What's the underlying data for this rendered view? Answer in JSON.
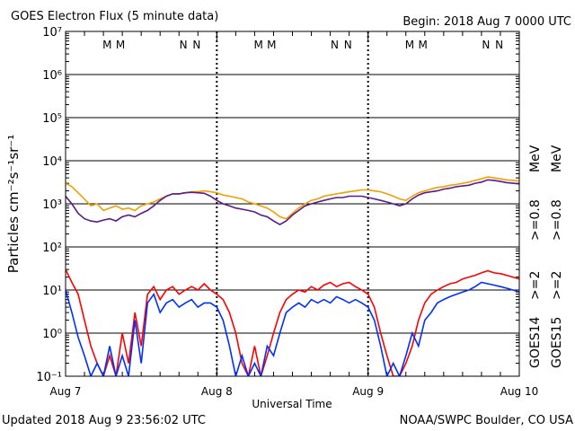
{
  "chart_data": {
    "type": "line",
    "title": "GOES Electron Flux (5 minute data)",
    "subtitle": "Begin: 2018 Aug 7 0000 UTC",
    "xlabel": "Universal Time",
    "ylabel": "Particles cm⁻²s⁻¹sr⁻¹",
    "footer_left": "Updated 2018 Aug  9 23:56:02 UTC",
    "footer_right": "NOAA/SWPC Boulder, CO USA",
    "log_y": true,
    "grid": true,
    "reference_line": 1000,
    "xlim": [
      0,
      72
    ],
    "xticks": [
      {
        "value": 0,
        "label": "Aug 7"
      },
      {
        "value": 24,
        "label": "Aug 8"
      },
      {
        "value": 48,
        "label": "Aug 9"
      },
      {
        "value": 72,
        "label": "Aug 10"
      }
    ],
    "ylim": [
      0.1,
      10000000
    ],
    "yticks": [
      {
        "value": 0.1,
        "label": "10⁻¹"
      },
      {
        "value": 1,
        "label": "10⁰"
      },
      {
        "value": 10,
        "label": "10¹"
      },
      {
        "value": 100,
        "label": "10²"
      },
      {
        "value": 1000,
        "label": "10³"
      },
      {
        "value": 10000,
        "label": "10⁴"
      },
      {
        "value": 100000,
        "label": "10⁵"
      },
      {
        "value": 1000000,
        "label": "10⁶"
      },
      {
        "value": 10000000,
        "label": "10⁷"
      }
    ],
    "legend_groups": [
      {
        "label": "GOES14",
        "unit": "MeV"
      },
      {
        "label": "GOES15",
        "unit": "MeV"
      }
    ],
    "markers": [
      {
        "x": 6.6,
        "label": "M",
        "color": "#0030ff"
      },
      {
        "x": 8.7,
        "label": "M",
        "color": "#ff0000"
      },
      {
        "x": 18.7,
        "label": "N",
        "color": "#0030ff"
      },
      {
        "x": 20.8,
        "label": "N",
        "color": "#ff0000"
      },
      {
        "x": 30.6,
        "label": "M",
        "color": "#0030ff"
      },
      {
        "x": 32.7,
        "label": "M",
        "color": "#ff0000"
      },
      {
        "x": 42.7,
        "label": "N",
        "color": "#0030ff"
      },
      {
        "x": 44.8,
        "label": "N",
        "color": "#ff0000"
      },
      {
        "x": 54.6,
        "label": "M",
        "color": "#0030ff"
      },
      {
        "x": 56.7,
        "label": "M",
        "color": "#ff0000"
      },
      {
        "x": 66.7,
        "label": "N",
        "color": "#0030ff"
      },
      {
        "x": 68.8,
        "label": "N",
        "color": "#ff0000"
      }
    ],
    "x": [
      0,
      1,
      2,
      3,
      4,
      5,
      6,
      7,
      8,
      9,
      10,
      11,
      12,
      13,
      14,
      15,
      16,
      17,
      18,
      19,
      20,
      21,
      22,
      23,
      24,
      25,
      26,
      27,
      28,
      29,
      30,
      31,
      32,
      33,
      34,
      35,
      36,
      37,
      38,
      39,
      40,
      41,
      42,
      43,
      44,
      45,
      46,
      47,
      48,
      49,
      50,
      51,
      52,
      53,
      54,
      55,
      56,
      57,
      58,
      59,
      60,
      61,
      62,
      63,
      64,
      65,
      66,
      67,
      68,
      69,
      70,
      71,
      72
    ],
    "series": [
      {
        "name": ">=2",
        "color": "#0030ff",
        "values": [
          10,
          3,
          0.8,
          0.3,
          0.1,
          0.2,
          0.1,
          0.5,
          0.1,
          0.3,
          0.1,
          2,
          0.2,
          5,
          8,
          3,
          5,
          6,
          4,
          5,
          6,
          4,
          5,
          5,
          4,
          2,
          0.5,
          0.1,
          0.3,
          0.1,
          0.2,
          0.1,
          0.5,
          0.3,
          1,
          3,
          4,
          5,
          4,
          6,
          5,
          6,
          5,
          7,
          6,
          5,
          6,
          5,
          4,
          2,
          0.5,
          0.1,
          0.2,
          0.1,
          0.3,
          1,
          0.5,
          2,
          3,
          5,
          6,
          7,
          8,
          9,
          10,
          12,
          15,
          14,
          13,
          12,
          11,
          10,
          9
        ]
      },
      {
        "name": ">=0.8",
        "color": "#5a1a8c",
        "values": [
          1500,
          1000,
          600,
          450,
          400,
          380,
          420,
          450,
          400,
          500,
          550,
          500,
          600,
          700,
          900,
          1200,
          1500,
          1700,
          1700,
          1800,
          1850,
          1800,
          1750,
          1500,
          1200,
          1000,
          900,
          800,
          750,
          700,
          650,
          550,
          500,
          400,
          330,
          400,
          550,
          700,
          900,
          1000,
          1100,
          1200,
          1300,
          1400,
          1400,
          1500,
          1500,
          1500,
          1400,
          1300,
          1200,
          1100,
          1000,
          900,
          1000,
          1300,
          1600,
          1800,
          1900,
          2000,
          2200,
          2300,
          2500,
          2600,
          2700,
          3000,
          3200,
          3600,
          3500,
          3300,
          3100,
          3000,
          2900
        ]
      },
      {
        "name": ">=2",
        "color": "#ff0000",
        "values": [
          30,
          15,
          8,
          2,
          0.5,
          0.2,
          0.1,
          0.3,
          0.1,
          1,
          0.2,
          3,
          0.5,
          8,
          12,
          6,
          10,
          12,
          8,
          10,
          12,
          10,
          14,
          10,
          8,
          6,
          3,
          1,
          0.2,
          0.1,
          0.5,
          0.1,
          0.3,
          1,
          3,
          6,
          8,
          10,
          9,
          12,
          10,
          13,
          15,
          12,
          14,
          15,
          12,
          10,
          8,
          4,
          1,
          0.3,
          0.1,
          0.1,
          0.2,
          0.5,
          2,
          5,
          8,
          10,
          12,
          14,
          15,
          18,
          20,
          22,
          25,
          28,
          25,
          24,
          22,
          20,
          18
        ]
      },
      {
        "name": ">=0.8",
        "color": "#f0a000",
        "values": [
          3000,
          2500,
          1800,
          1300,
          900,
          1000,
          700,
          800,
          900,
          750,
          800,
          700,
          900,
          1000,
          1100,
          1300,
          1500,
          1700,
          1700,
          1800,
          1900,
          1900,
          2000,
          1900,
          1800,
          1600,
          1500,
          1400,
          1300,
          1100,
          1000,
          900,
          800,
          650,
          500,
          450,
          600,
          800,
          1000,
          1200,
          1300,
          1500,
          1600,
          1700,
          1800,
          1900,
          2000,
          2100,
          2100,
          2000,
          1900,
          1700,
          1500,
          1300,
          1200,
          1500,
          1800,
          2000,
          2200,
          2400,
          2500,
          2700,
          2800,
          3000,
          3200,
          3500,
          3800,
          4200,
          4000,
          3800,
          3600,
          3500,
          3400
        ]
      }
    ]
  }
}
